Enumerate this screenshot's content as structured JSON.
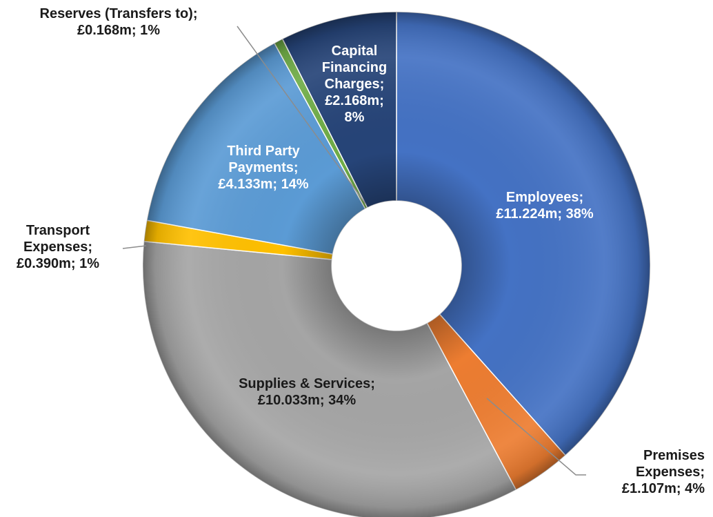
{
  "chart_data": {
    "type": "donut",
    "categories": [
      "Employees",
      "Premises Expenses",
      "Supplies & Services",
      "Transport Expenses",
      "Third Party Payments",
      "Reserves (Transfers to)",
      "Capital Financing Charges"
    ],
    "values": [
      11.224,
      1.107,
      10.033,
      0.39,
      4.133,
      0.168,
      2.168
    ],
    "units": "£m",
    "labels": [
      [
        "Employees;",
        "£11.224m; 38%"
      ],
      [
        "Premises",
        "Expenses;",
        "£1.107m; 4%"
      ],
      [
        "Supplies & Services;",
        "£10.033m; 34%"
      ],
      [
        "Transport",
        "Expenses;",
        "£0.390m; 1%"
      ],
      [
        "Third Party",
        "Payments;",
        "£4.133m; 14%"
      ],
      [
        "Reserves (Transfers to);",
        "£0.168m; 1%"
      ],
      [
        "Capital",
        "Financing",
        "Charges;",
        "£2.168m;",
        "8%"
      ]
    ],
    "colors": [
      "#4472c4",
      "#ed7d31",
      "#a5a5a5",
      "#ffc000",
      "#5b9bd5",
      "#70ad47",
      "#264478"
    ],
    "start_angle": "top",
    "direction": "clockwise",
    "legend": "none"
  }
}
